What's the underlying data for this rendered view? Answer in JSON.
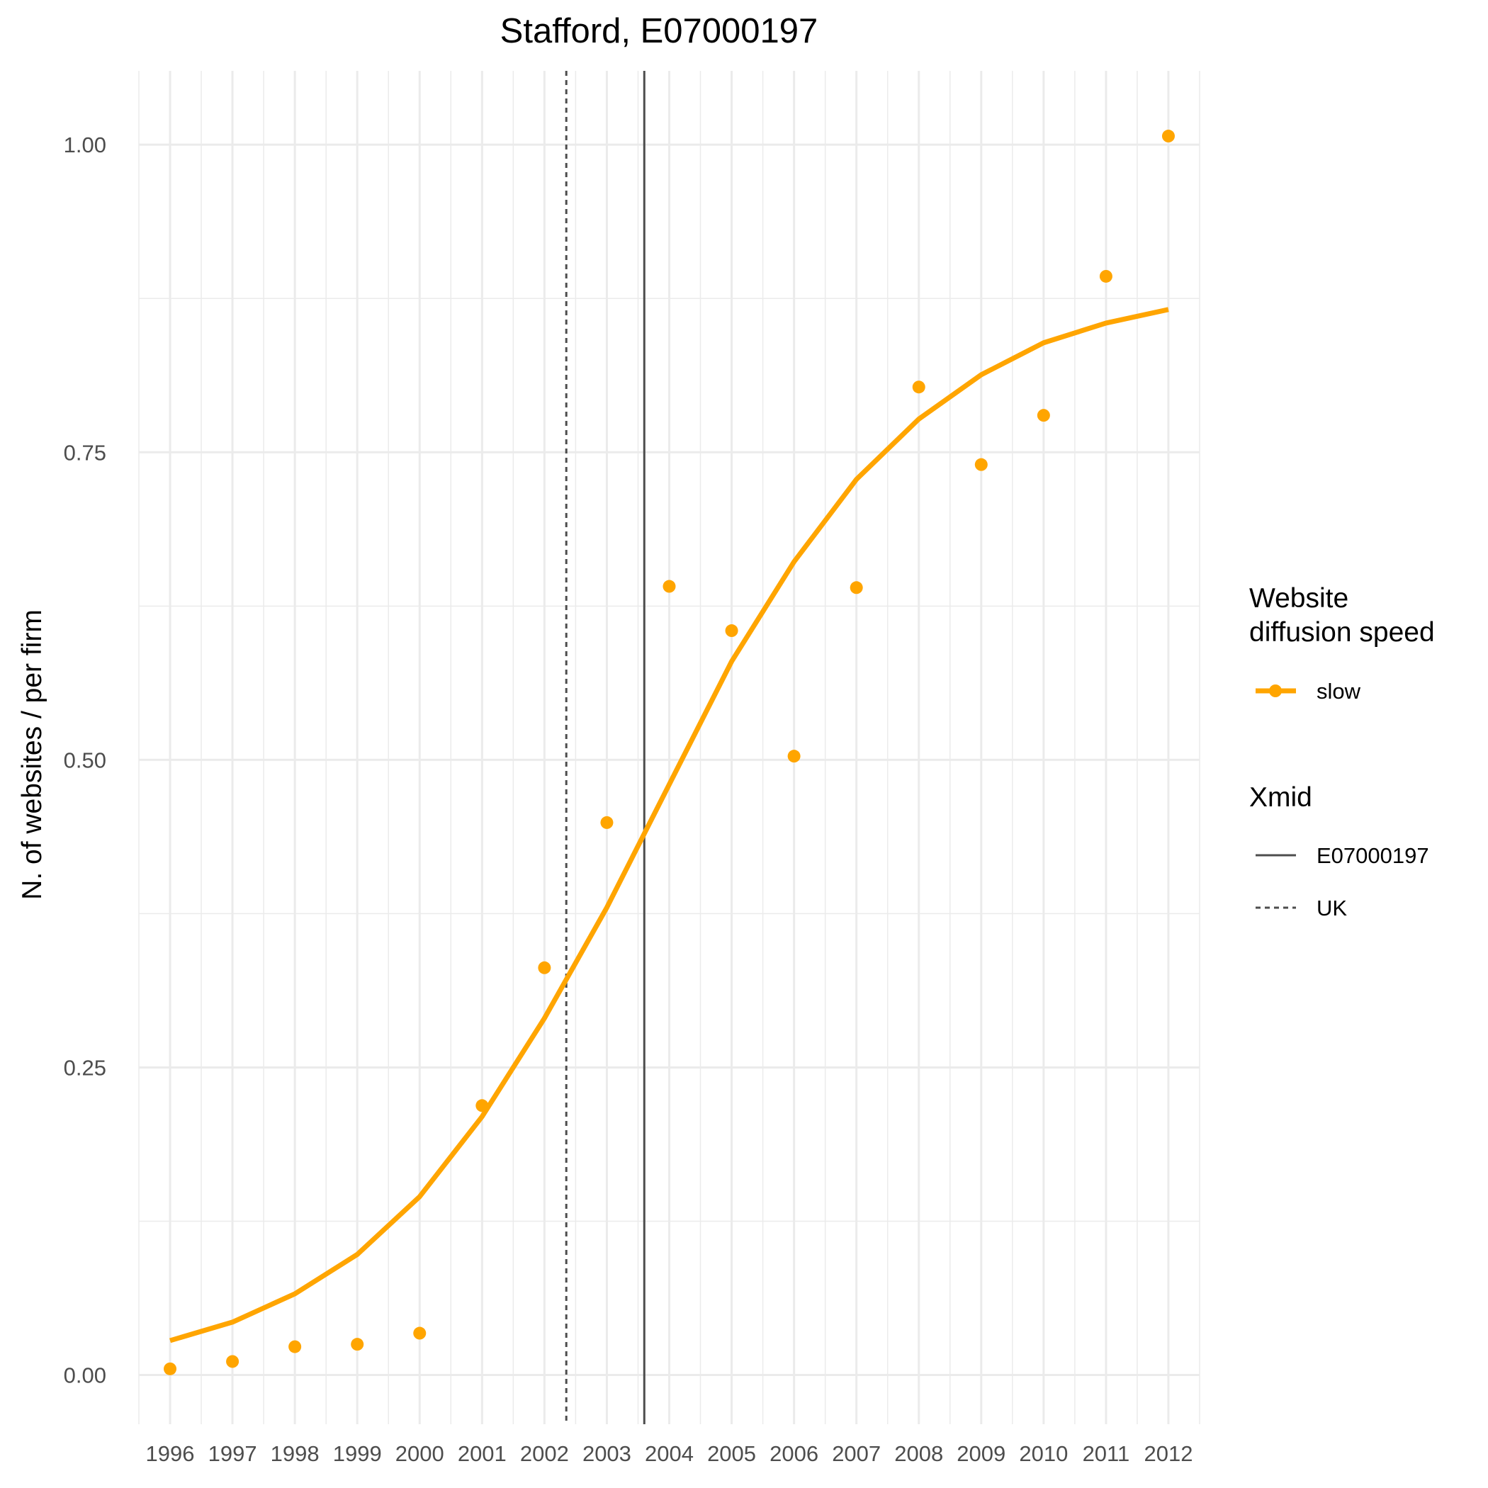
{
  "chart_data": {
    "type": "line",
    "title": "Stafford, E07000197",
    "xlabel": "",
    "ylabel": "N. of websites / per firm",
    "x": [
      1996,
      1997,
      1998,
      1999,
      2000,
      2001,
      2002,
      2003,
      2004,
      2005,
      2006,
      2007,
      2008,
      2009,
      2010,
      2011,
      2012
    ],
    "x_tick_labels": [
      "1996",
      "1997",
      "1998",
      "1999",
      "2000",
      "2001",
      "2002",
      "2003",
      "2004",
      "2005",
      "2006",
      "2007",
      "2008",
      "2009",
      "2010",
      "2011",
      "2012"
    ],
    "y_tick_labels": [
      "0.00",
      "0.25",
      "0.50",
      "0.75",
      "1.00"
    ],
    "y_ticks": [
      0,
      0.25,
      0.5,
      0.75,
      1.0
    ],
    "xlim": [
      1995.5,
      2012.5
    ],
    "ylim": [
      -0.04,
      1.06
    ],
    "grid": true,
    "series": [
      {
        "name": "slow",
        "color": "#FFA500",
        "fitted": [
          0.028,
          0.043,
          0.066,
          0.098,
          0.145,
          0.21,
          0.29,
          0.38,
          0.48,
          0.58,
          0.661,
          0.728,
          0.777,
          0.813,
          0.839,
          0.855,
          0.866
        ],
        "observed": [
          0.005,
          0.011,
          0.023,
          0.025,
          0.034,
          0.219,
          0.331,
          0.449,
          0.641,
          0.605,
          0.503,
          0.64,
          0.803,
          0.74,
          0.78,
          0.893,
          1.007
        ]
      }
    ],
    "vlines": [
      {
        "name": "E07000197",
        "x": 2003.6,
        "style": "solid",
        "color": "#4d4d4d"
      },
      {
        "name": "UK",
        "x": 2002.35,
        "style": "dotted",
        "color": "#4d4d4d"
      }
    ],
    "legend": {
      "placement": "right",
      "color_title_line1": "Website",
      "color_title_line2": "diffusion speed",
      "color_item": "slow",
      "linetype_title": "Xmid",
      "linetype_items": [
        "E07000197",
        "UK"
      ]
    }
  }
}
